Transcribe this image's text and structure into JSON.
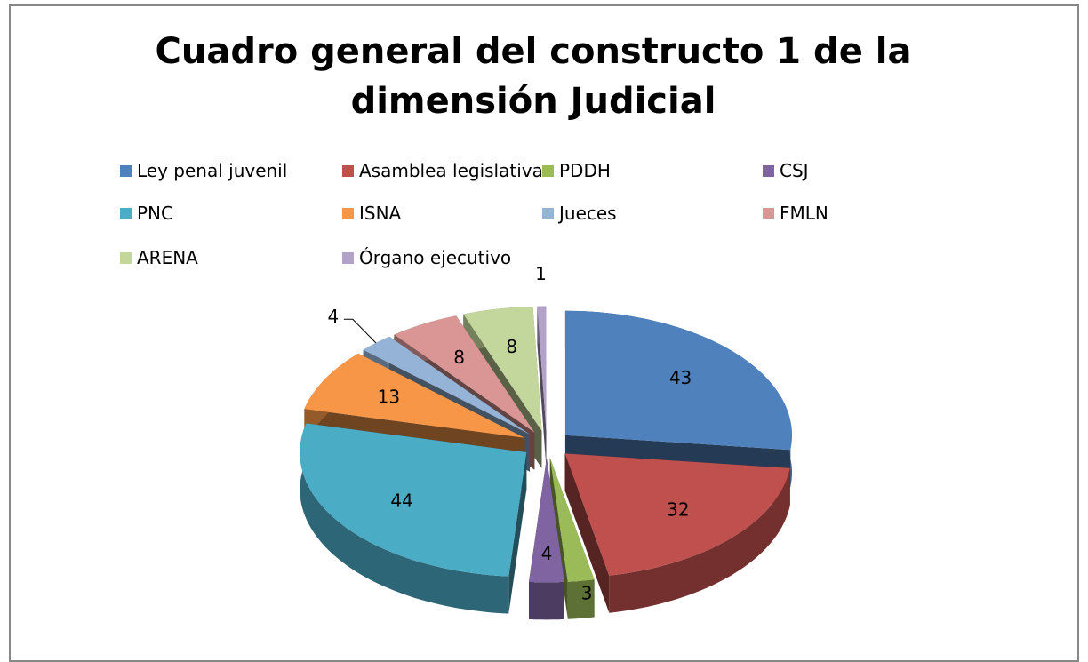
{
  "chart_data": {
    "type": "pie",
    "title": "Cuadro general del constructo 1 de la dimensión Judicial",
    "categories": [
      "Ley penal juvenil",
      "Asamblea legislativa",
      "PDDH",
      "CSJ",
      "PNC",
      "ISNA",
      "Jueces",
      "FMLN",
      "ARENA",
      "Órgano ejecutivo"
    ],
    "values": [
      43,
      32,
      3,
      4,
      44,
      13,
      4,
      8,
      8,
      1
    ],
    "colors": [
      "#4f81bd",
      "#c0504d",
      "#9bbb59",
      "#8064a2",
      "#4bacc6",
      "#f79646",
      "#95b3d7",
      "#d99694",
      "#c3d69b",
      "#b3a2c7"
    ],
    "legend": "top",
    "exploded": true,
    "three_d": true
  }
}
